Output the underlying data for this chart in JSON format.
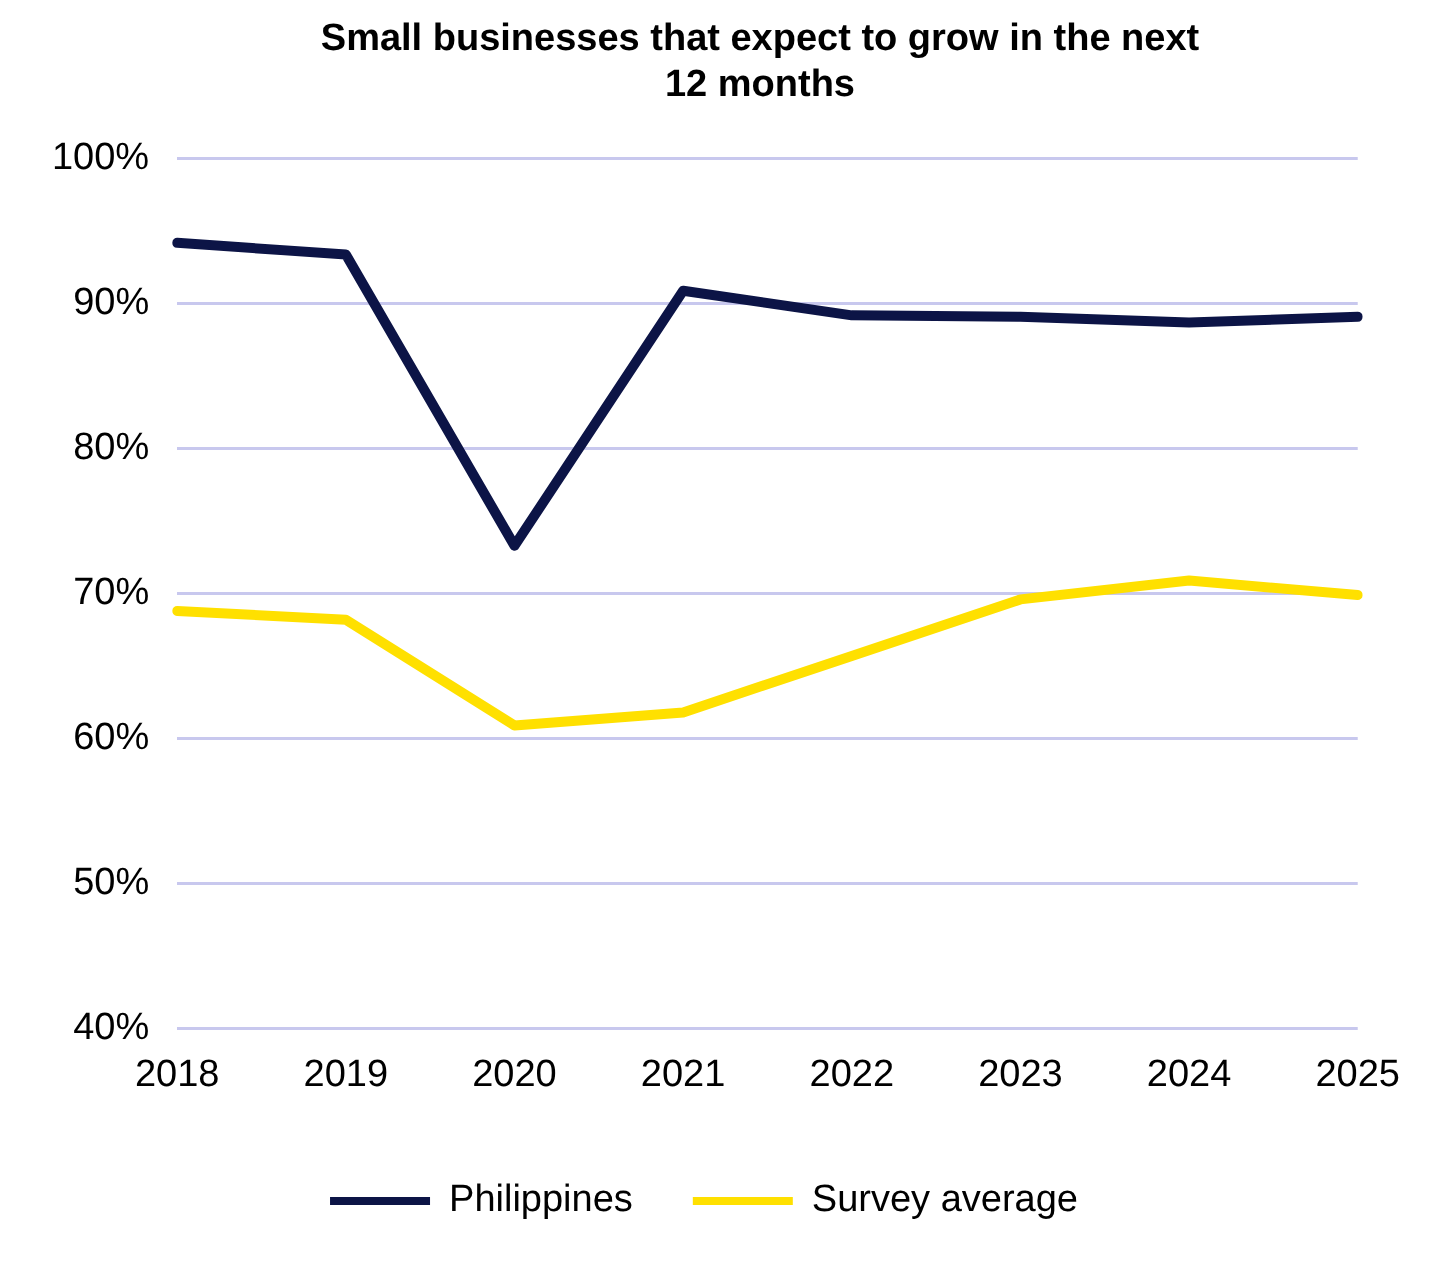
{
  "chart_data": {
    "type": "line",
    "title": "Small businesses that expect to grow in the next 12 months",
    "categories": [
      "2018",
      "2019",
      "2020",
      "2021",
      "2022",
      "2023",
      "2024",
      "2025"
    ],
    "series": [
      {
        "name": "Philippines",
        "color": "#0c1446",
        "values": [
          94.2,
          93.4,
          73.3,
          90.9,
          89.2,
          89.1,
          88.7,
          89.1
        ]
      },
      {
        "name": "Survey average",
        "color": "#ffe000",
        "values": [
          68.8,
          68.2,
          60.9,
          61.8,
          65.7,
          69.6,
          70.9,
          69.9
        ]
      }
    ],
    "ylim": [
      40,
      100
    ],
    "yticks": [
      {
        "value": 40,
        "label": "40%"
      },
      {
        "value": 50,
        "label": "50%"
      },
      {
        "value": 60,
        "label": "60%"
      },
      {
        "value": 70,
        "label": "70%"
      },
      {
        "value": 80,
        "label": "80%"
      },
      {
        "value": 90,
        "label": "90%"
      },
      {
        "value": 100,
        "label": "100%"
      }
    ],
    "grid": "y",
    "legend": "bottom",
    "marker": "none",
    "line_style": "solid"
  }
}
